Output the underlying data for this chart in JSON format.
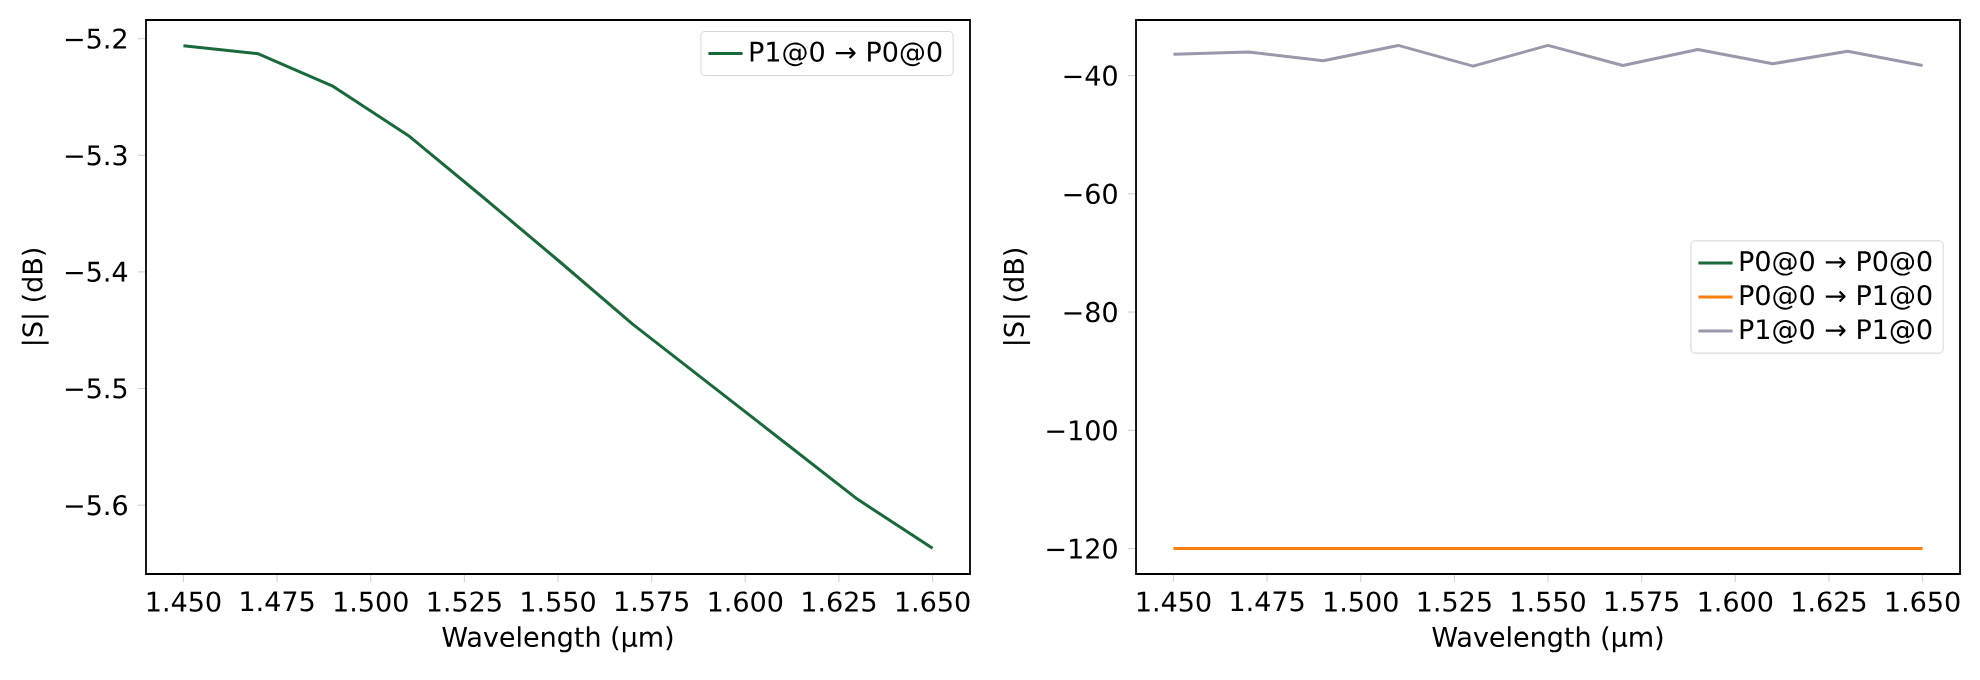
{
  "chart_data": [
    {
      "type": "line",
      "xlabel": "Wavelength (µm)",
      "ylabel": "|S| (dB)",
      "x": [
        1.45,
        1.47,
        1.49,
        1.51,
        1.53,
        1.55,
        1.57,
        1.59,
        1.61,
        1.63,
        1.65
      ],
      "series": [
        {
          "name": "P1@0 → P0@0",
          "color": "#19693a",
          "values": [
            -5.206,
            -5.213,
            -5.241,
            -5.283,
            -5.336,
            -5.39,
            -5.445,
            -5.495,
            -5.545,
            -5.595,
            -5.637
          ]
        }
      ],
      "xlim": [
        1.44,
        1.66
      ],
      "ylim": [
        -5.659,
        -5.184
      ],
      "xticks": [
        {
          "value": 1.45,
          "label": "1.450"
        },
        {
          "value": 1.475,
          "label": "1.475"
        },
        {
          "value": 1.5,
          "label": "1.500"
        },
        {
          "value": 1.525,
          "label": "1.525"
        },
        {
          "value": 1.55,
          "label": "1.550"
        },
        {
          "value": 1.575,
          "label": "1.575"
        },
        {
          "value": 1.6,
          "label": "1.600"
        },
        {
          "value": 1.625,
          "label": "1.625"
        },
        {
          "value": 1.65,
          "label": "1.650"
        }
      ],
      "yticks": [
        {
          "value": -5.6,
          "label": "−5.6"
        },
        {
          "value": -5.5,
          "label": "−5.5"
        },
        {
          "value": -5.4,
          "label": "−5.4"
        },
        {
          "value": -5.3,
          "label": "−5.3"
        },
        {
          "value": -5.2,
          "label": "−5.2"
        }
      ],
      "legend": "top right"
    },
    {
      "type": "line",
      "xlabel": "Wavelength (µm)",
      "ylabel": "|S| (dB)",
      "x": [
        1.45,
        1.47,
        1.49,
        1.51,
        1.53,
        1.55,
        1.57,
        1.59,
        1.61,
        1.63,
        1.65
      ],
      "series": [
        {
          "name": "P0@0 → P0@0",
          "color": "#19693a",
          "values": [
            null,
            null,
            null,
            null,
            null,
            null,
            null,
            null,
            null,
            null,
            null
          ]
        },
        {
          "name": "P0@0 → P1@0",
          "color": "#ff7f0e",
          "values": [
            -120,
            -120,
            -120,
            -120,
            -120,
            -120,
            -120,
            -120,
            -120,
            -120,
            -120
          ]
        },
        {
          "name": "P1@0 → P1@0",
          "color": "#9a98ab",
          "values": [
            -36.4,
            -36.0,
            -37.5,
            -34.9,
            -38.4,
            -34.9,
            -38.3,
            -35.6,
            -38.0,
            -35.9,
            -38.3
          ]
        }
      ],
      "xlim": [
        1.44,
        1.66
      ],
      "ylim": [
        -124.3,
        -30.6
      ],
      "xticks": [
        {
          "value": 1.45,
          "label": "1.450"
        },
        {
          "value": 1.475,
          "label": "1.475"
        },
        {
          "value": 1.5,
          "label": "1.500"
        },
        {
          "value": 1.525,
          "label": "1.525"
        },
        {
          "value": 1.55,
          "label": "1.550"
        },
        {
          "value": 1.575,
          "label": "1.575"
        },
        {
          "value": 1.6,
          "label": "1.600"
        },
        {
          "value": 1.625,
          "label": "1.625"
        },
        {
          "value": 1.65,
          "label": "1.650"
        }
      ],
      "yticks": [
        {
          "value": -120,
          "label": "−120"
        },
        {
          "value": -100,
          "label": "−100"
        },
        {
          "value": -80,
          "label": "−80"
        },
        {
          "value": -60,
          "label": "−60"
        },
        {
          "value": -40,
          "label": "−40"
        }
      ],
      "legend": "right"
    }
  ]
}
